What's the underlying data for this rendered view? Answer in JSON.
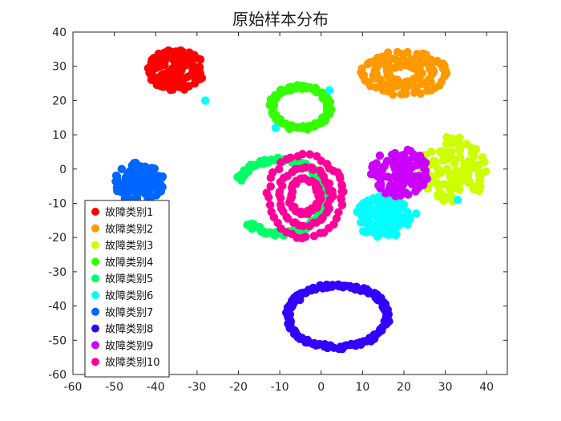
{
  "chart_data": {
    "type": "scatter",
    "title": "原始样本分布",
    "xlabel": "",
    "ylabel": "",
    "xlim": [
      -60,
      45
    ],
    "ylim": [
      -60,
      40
    ],
    "x_ticks": [
      -60,
      -50,
      -40,
      -30,
      -20,
      -10,
      0,
      10,
      20,
      30,
      40
    ],
    "y_ticks": [
      -60,
      -50,
      -40,
      -30,
      -20,
      -10,
      0,
      10,
      20,
      30,
      40
    ],
    "grid": false,
    "legend_position": "bottom-left",
    "series": [
      {
        "name": "故障类别1",
        "color": "#ff0000",
        "shape": "blob",
        "center": [
          -35,
          29
        ],
        "radius": [
          7,
          6
        ],
        "count": 140,
        "outliers": []
      },
      {
        "name": "故障类别2",
        "color": "#ff9900",
        "shape": "arcs",
        "center": [
          20,
          28
        ],
        "radius": [
          10,
          6
        ],
        "count": 130,
        "outliers": []
      },
      {
        "name": "故障类别3",
        "color": "#ccff00",
        "shape": "blob",
        "center": [
          32,
          0
        ],
        "radius": [
          8,
          10
        ],
        "count": 120,
        "outliers": []
      },
      {
        "name": "故障类别4",
        "color": "#33ff00",
        "shape": "ring",
        "center": [
          -5,
          18
        ],
        "radius": [
          7,
          6
        ],
        "count": 120,
        "outliers": []
      },
      {
        "name": "故障类别5",
        "color": "#00ff66",
        "shape": "arc",
        "center": [
          -10,
          -8
        ],
        "radius": [
          11,
          12
        ],
        "count": 140,
        "outliers": []
      },
      {
        "name": "故障类别6",
        "color": "#00ffff",
        "shape": "blob",
        "center": [
          15,
          -14
        ],
        "radius": [
          7,
          6
        ],
        "count": 150,
        "outliers": [
          [
            -28,
            20
          ],
          [
            -11,
            12
          ],
          [
            2,
            23
          ],
          [
            23,
            -13
          ],
          [
            33,
            -9
          ]
        ]
      },
      {
        "name": "故障类别7",
        "color": "#0066ff",
        "shape": "blob",
        "center": [
          -44,
          -4
        ],
        "radius": [
          6,
          6
        ],
        "count": 110,
        "outliers": []
      },
      {
        "name": "故障类别8",
        "color": "#3300ff",
        "shape": "ring",
        "center": [
          4,
          -43
        ],
        "radius": [
          12,
          9
        ],
        "count": 150,
        "outliers": []
      },
      {
        "name": "故障类别9",
        "color": "#cc00ff",
        "shape": "blob",
        "center": [
          19,
          -1
        ],
        "radius": [
          7,
          7
        ],
        "count": 100,
        "outliers": []
      },
      {
        "name": "故障类别10",
        "color": "#ff0099",
        "shape": "arcs",
        "center": [
          -4,
          -8
        ],
        "radius": [
          9,
          12
        ],
        "count": 130,
        "outliers": []
      }
    ]
  }
}
